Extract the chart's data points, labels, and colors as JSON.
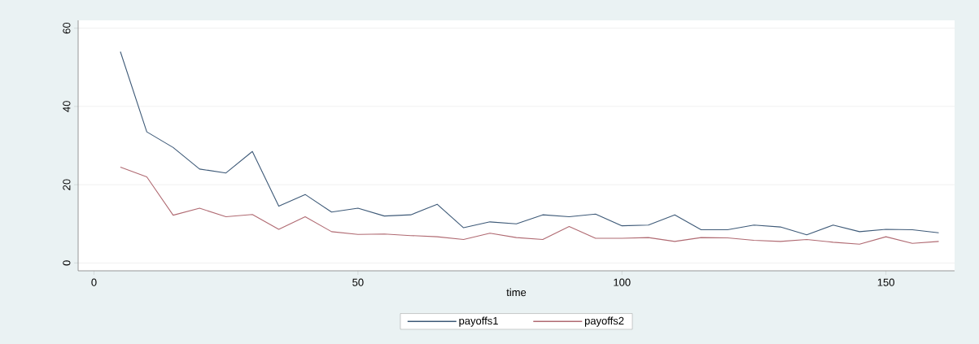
{
  "chart_data": {
    "type": "line",
    "xlabel": "time",
    "x": [
      5,
      10,
      15,
      20,
      25,
      30,
      35,
      40,
      45,
      50,
      55,
      60,
      65,
      70,
      75,
      80,
      85,
      90,
      95,
      100,
      105,
      110,
      115,
      120,
      125,
      130,
      135,
      140,
      145,
      150,
      155,
      160
    ],
    "series": [
      {
        "name": "payoffs1",
        "color": "#3e5a78",
        "values": [
          54,
          33.5,
          29.5,
          24,
          23,
          28.5,
          14.5,
          17.5,
          13,
          14,
          12,
          12.3,
          15,
          9,
          10.5,
          10,
          12.3,
          11.8,
          12.5,
          9.5,
          9.7,
          12.3,
          8.5,
          8.5,
          9.7,
          9.2,
          7.2,
          9.7,
          8,
          8.6,
          8.5,
          7.7
        ]
      },
      {
        "name": "payoffs2",
        "color": "#b06a72",
        "values": [
          24.5,
          22,
          12.2,
          14,
          11.8,
          12.4,
          8.6,
          11.8,
          8,
          7.3,
          7.4,
          7,
          6.7,
          6,
          7.6,
          6.5,
          6,
          9.3,
          6.3,
          6.3,
          6.5,
          5.5,
          6.5,
          6.4,
          5.8,
          5.5,
          6,
          5.3,
          4.8,
          6.7,
          5,
          5.5
        ]
      }
    ],
    "xlim": [
      -3,
      163
    ],
    "ylim": [
      -2,
      62
    ],
    "xticks": [
      0,
      50,
      100,
      150
    ],
    "yticks": [
      0,
      20,
      40,
      60
    ],
    "grid": "y",
    "legend": "bottom"
  }
}
